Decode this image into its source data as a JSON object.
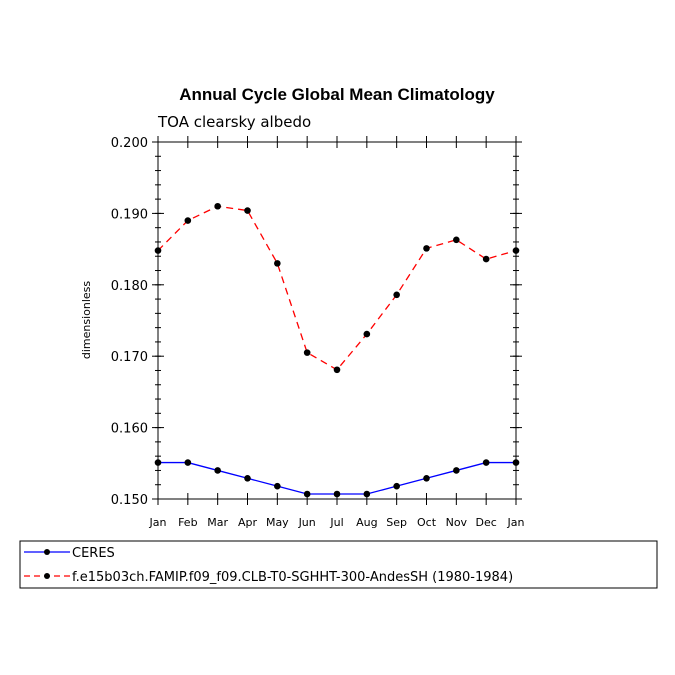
{
  "chart_data": {
    "type": "line",
    "title": "Annual Cycle Global Mean Climatology",
    "subtitle": "TOA clearsky albedo",
    "xlabel": "",
    "ylabel": "dimensionless",
    "categories": [
      "Jan",
      "Feb",
      "Mar",
      "Apr",
      "May",
      "Jun",
      "Jul",
      "Aug",
      "Sep",
      "Oct",
      "Nov",
      "Dec",
      "Jan"
    ],
    "ylim": [
      0.15,
      0.2
    ],
    "yticks": [
      "0.150",
      "0.160",
      "0.170",
      "0.180",
      "0.190",
      "0.200"
    ],
    "ytick_values": [
      0.15,
      0.16,
      0.17,
      0.18,
      0.19,
      0.2
    ],
    "grid": false,
    "legend_position": "bottom-left, below plot",
    "series": [
      {
        "name": "CERES",
        "color": "#0000ff",
        "style": "solid",
        "marker": "circle",
        "values": [
          0.1551,
          0.1551,
          0.154,
          0.1529,
          0.1518,
          0.1507,
          0.1507,
          0.1507,
          0.1518,
          0.1529,
          0.154,
          0.1551,
          0.1551
        ]
      },
      {
        "name": "f.e15b03ch.FAMIP.f09_f09.CLB-T0-SGHHT-300-AndesSH (1980-1984)",
        "color": "#ff0000",
        "style": "dashed",
        "marker": "circle",
        "values": [
          0.1848,
          0.189,
          0.191,
          0.1904,
          0.183,
          0.1705,
          0.1681,
          0.1731,
          0.1786,
          0.1851,
          0.1863,
          0.1836,
          0.1848
        ]
      }
    ]
  }
}
